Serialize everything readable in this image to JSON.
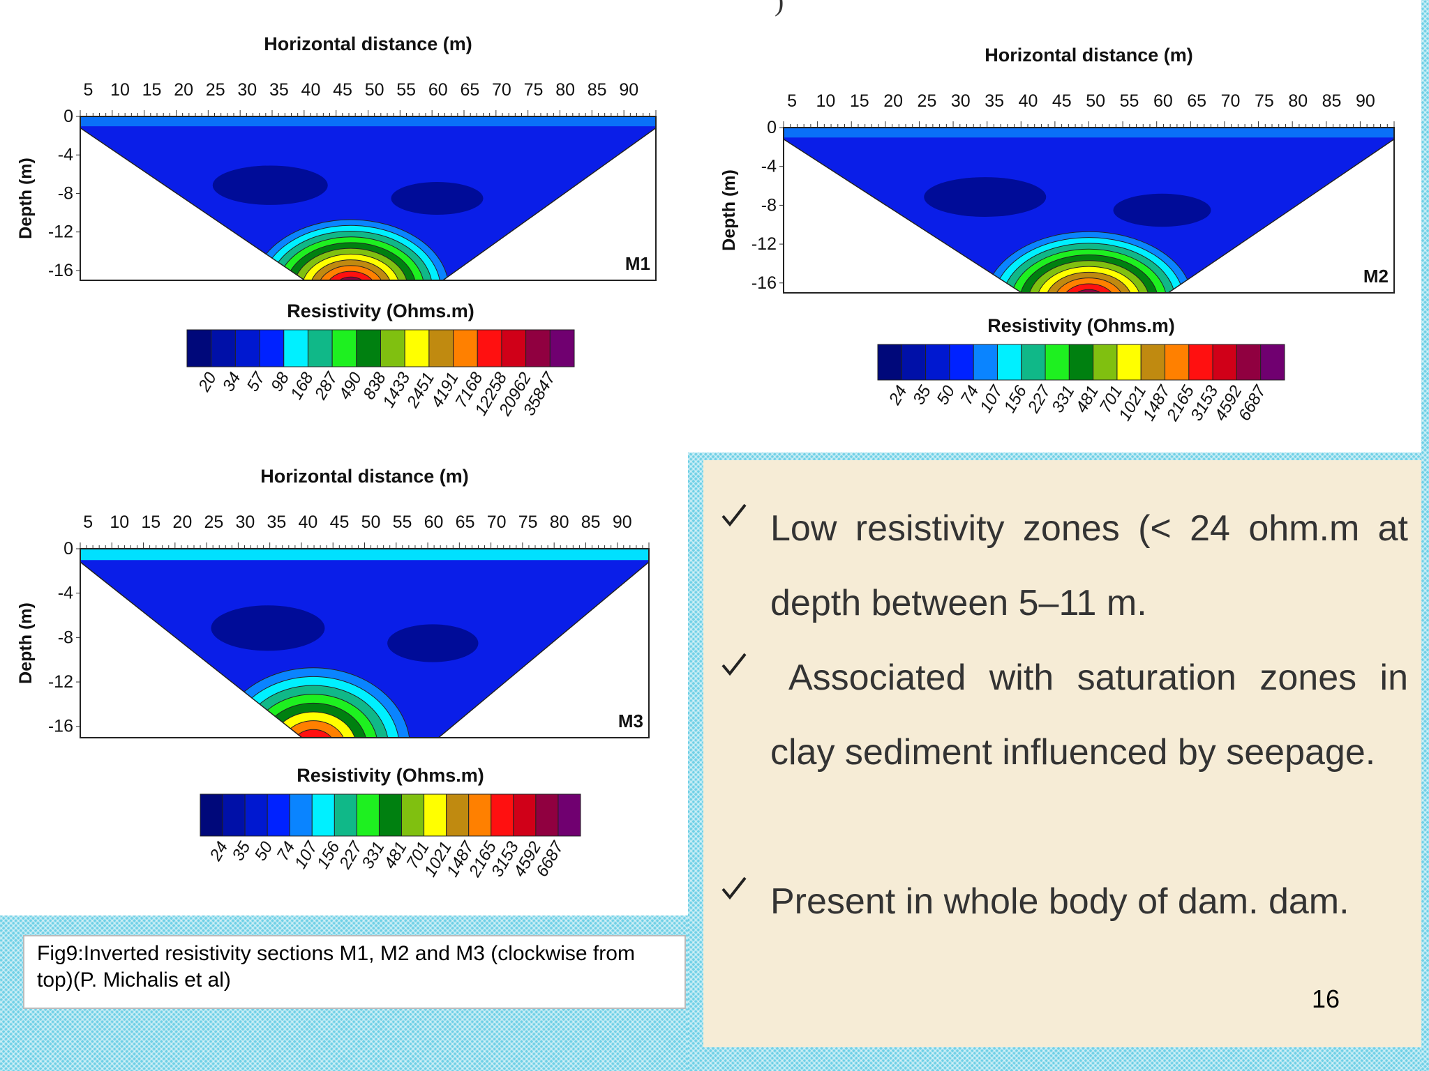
{
  "title_fragment": ")",
  "figures": [
    {
      "x_axis_title": "Horizontal distance (m)",
      "x_ticks": [
        5,
        10,
        15,
        20,
        25,
        30,
        35,
        40,
        45,
        50,
        55,
        60,
        65,
        70,
        75,
        80,
        85,
        90
      ],
      "y_axis_title": "Depth (m)",
      "y_ticks": [
        0,
        -4,
        -8,
        -12,
        -16
      ],
      "section_label": "M1",
      "colorbar_title": "Resistivity (Ohms.m)",
      "colorbar_labels": [
        20,
        34,
        57,
        98,
        168,
        287,
        490,
        838,
        1433,
        2451,
        4191,
        7168,
        12258,
        20962,
        35847
      ]
    },
    {
      "x_axis_title": "Horizontal distance (m)",
      "x_ticks": [
        5,
        10,
        15,
        20,
        25,
        30,
        35,
        40,
        45,
        50,
        55,
        60,
        65,
        70,
        75,
        80,
        85,
        90
      ],
      "y_axis_title": "Depth (m)",
      "y_ticks": [
        0,
        -4,
        -8,
        -12,
        -16
      ],
      "section_label": "M2",
      "colorbar_title": "Resistivity (Ohms.m)",
      "colorbar_labels": [
        24,
        35,
        50,
        74,
        107,
        156,
        227,
        331,
        481,
        701,
        1021,
        1487,
        2165,
        3153,
        4592,
        6687
      ]
    },
    {
      "x_axis_title": "Horizontal distance (m)",
      "x_ticks": [
        5,
        10,
        15,
        20,
        25,
        30,
        35,
        40,
        45,
        50,
        55,
        60,
        65,
        70,
        75,
        80,
        85,
        90
      ],
      "y_axis_title": "Depth (m)",
      "y_ticks": [
        0,
        -4,
        -8,
        -12,
        -16
      ],
      "section_label": "M3",
      "colorbar_title": "Resistivity (Ohms.m)",
      "colorbar_labels": [
        24,
        35,
        50,
        74,
        107,
        156,
        227,
        331,
        481,
        701,
        1021,
        1487,
        2165,
        3153,
        4592,
        6687
      ]
    }
  ],
  "bullets": [
    "Low resistivity zones (< 24 ohm.m at depth between 5–11 m.",
    "Associated with saturation zones in clay sediment influenced by seepage.",
    "Present in whole body of dam. dam."
  ],
  "caption": "Fig9:Inverted resistivity sections M1, M2 and M3 (clockwise from top)(P. Michalis et al)",
  "page_number": "16"
}
